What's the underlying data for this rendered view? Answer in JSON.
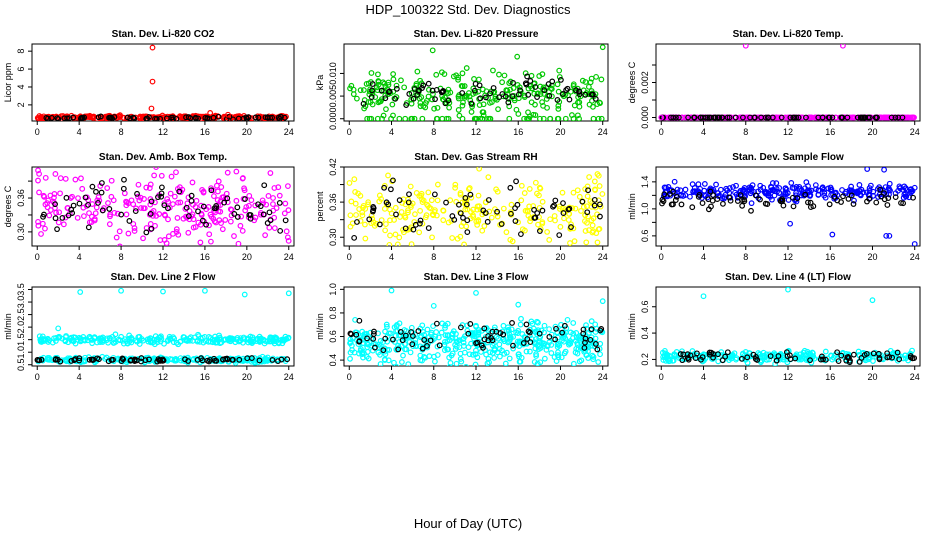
{
  "figure": {
    "title": "HDP_100322  Std. Dev. Diagnostics",
    "xlabel": "Hour of Day (UTC)"
  },
  "colors": {
    "red": "#ff0000",
    "green": "#00c800",
    "magenta": "#ff00ff",
    "yellow": "#ffff00",
    "blue": "#0000ff",
    "cyan": "#00ffff",
    "black": "#000000"
  },
  "chart_data": [
    {
      "type": "scatter",
      "id": "co2",
      "title": "Stan. Dev. Li-820 CO2",
      "ylabel": "Licor ppm",
      "color": "red",
      "xlim": [
        -0.5,
        24.5
      ],
      "ylim": [
        0.2,
        8.8
      ],
      "xticks": [
        0,
        4,
        8,
        12,
        16,
        20,
        24
      ],
      "yticks": [
        2,
        4,
        6,
        8
      ],
      "ytick_labels": [
        "2",
        "4",
        "6",
        "8"
      ],
      "band": {
        "center": 0.62,
        "spread": 0.08
      },
      "outliers": [
        [
          11.0,
          8.4
        ],
        [
          11.0,
          4.6
        ],
        [
          10.9,
          1.6
        ],
        [
          16.5,
          1.1
        ],
        [
          18.2,
          0.9
        ],
        [
          7.9,
          0.85
        ]
      ],
      "black": {
        "center": 0.55,
        "spread": 0.07
      }
    },
    {
      "type": "scatter",
      "id": "pressure",
      "title": "Stan. Dev. Li-820 Pressure",
      "ylabel": "kPa",
      "color": "green",
      "xlim": [
        -0.5,
        24.5
      ],
      "ylim": [
        -0.0005,
        0.0165
      ],
      "xticks": [
        0,
        4,
        8,
        12,
        16,
        20,
        24
      ],
      "yticks": [
        0,
        0.005,
        0.01
      ],
      "ytick_labels": [
        "0.000",
        "0.005",
        "0.010"
      ],
      "band": {
        "center": 0.0055,
        "spread": 0.0022
      },
      "outliers": [
        [
          24.0,
          0.0158
        ],
        [
          7.9,
          0.0151
        ],
        [
          15.9,
          0.0137
        ],
        [
          2.1,
          0.0101
        ]
      ],
      "zero_row": true,
      "black": {
        "center": 0.0055,
        "spread": 0.0015
      }
    },
    {
      "type": "scatter",
      "id": "temp",
      "title": "Stan. Dev. Li-820 Temp.",
      "ylabel": "degrees C",
      "color": "magenta",
      "xlim": [
        -0.5,
        24.5
      ],
      "ylim": [
        -0.0002,
        0.0042
      ],
      "xticks": [
        0,
        4,
        8,
        12,
        16,
        20,
        24
      ],
      "yticks": [
        0,
        0.001,
        0.002,
        0.003
      ],
      "ytick_labels": [
        "0.000",
        "",
        "0.002",
        ""
      ],
      "band": {
        "center": 0.0,
        "spread": 0.0
      },
      "outliers": [
        [
          8.0,
          0.0041
        ],
        [
          17.2,
          0.0041
        ],
        [
          0.0,
          0.0
        ]
      ],
      "black": {
        "center": 0.0,
        "spread": 0.0
      }
    },
    {
      "type": "scatter",
      "id": "boxtemp",
      "title": "Stan. Dev. Amb. Box Temp.",
      "ylabel": "degrees C",
      "color": "magenta",
      "xlim": [
        -0.5,
        24.5
      ],
      "ylim": [
        0.275,
        0.415
      ],
      "xticks": [
        0,
        4,
        8,
        12,
        16,
        20,
        24
      ],
      "yticks": [
        0.3,
        0.33,
        0.36,
        0.39
      ],
      "ytick_labels": [
        "0.30",
        "",
        "0.36",
        ""
      ],
      "band": {
        "center": 0.345,
        "spread": 0.028
      },
      "outliers": [
        [
          19.2,
          0.279
        ],
        [
          23.8,
          0.301
        ],
        [
          19.0,
          0.407
        ]
      ],
      "black": {
        "center": 0.345,
        "spread": 0.02
      }
    },
    {
      "type": "scatter",
      "id": "rh",
      "title": "Stan. Dev. Gas Stream RH",
      "ylabel": "percent",
      "color": "yellow",
      "xlim": [
        -0.5,
        24.5
      ],
      "ylim": [
        0.285,
        0.42
      ],
      "xticks": [
        0,
        4,
        8,
        12,
        16,
        20,
        24
      ],
      "yticks": [
        0.3,
        0.33,
        0.36,
        0.39,
        0.42
      ],
      "ytick_labels": [
        "0.30",
        "",
        "0.36",
        "",
        "0.42"
      ],
      "band": {
        "center": 0.345,
        "spread": 0.025
      },
      "outliers": [
        [
          12.3,
          0.417
        ],
        [
          20.9,
          0.29
        ],
        [
          23.5,
          0.408
        ]
      ],
      "black": {
        "center": 0.35,
        "spread": 0.02
      }
    },
    {
      "type": "scatter",
      "id": "sample",
      "title": "Stan. Dev. Sample Flow",
      "ylabel": "ml/min",
      "color": "blue",
      "xlim": [
        -0.5,
        24.5
      ],
      "ylim": [
        0.45,
        1.62
      ],
      "xticks": [
        0,
        4,
        8,
        12,
        16,
        20,
        24
      ],
      "yticks": [
        0.6,
        0.8,
        1.0,
        1.2,
        1.4
      ],
      "ytick_labels": [
        "0.6",
        "",
        "1.0",
        "",
        "1.4"
      ],
      "band": {
        "center": 1.25,
        "spread": 0.06
      },
      "outliers": [
        [
          19.5,
          1.59
        ],
        [
          21.1,
          1.58
        ],
        [
          24.0,
          0.48
        ],
        [
          21.3,
          0.6
        ],
        [
          21.6,
          0.6
        ],
        [
          16.2,
          0.62
        ],
        [
          12.2,
          0.78
        ]
      ],
      "black": {
        "center": 1.12,
        "spread": 0.06
      }
    },
    {
      "type": "scatter",
      "id": "line2",
      "title": "Stan. Dev. Line 2 Flow",
      "ylabel": "ml/min",
      "color": "cyan",
      "xlim": [
        -0.5,
        24.5
      ],
      "ylim": [
        0.45,
        3.6
      ],
      "xticks": [
        0,
        4,
        8,
        12,
        16,
        20,
        24
      ],
      "yticks": [
        0.5,
        1.0,
        1.5,
        2.0,
        2.5,
        3.0,
        3.5
      ],
      "ytick_labels": [
        "0.5",
        "1.0",
        "1.5",
        "2.0",
        "2.5",
        "3.0",
        "3.5"
      ],
      "band": {
        "center": 1.5,
        "spread": 0.08
      },
      "band2": {
        "center": 0.7,
        "spread": 0.05
      },
      "outliers": [
        [
          4.1,
          3.4
        ],
        [
          8.0,
          3.45
        ],
        [
          12.0,
          3.42
        ],
        [
          16.0,
          3.45
        ],
        [
          19.8,
          3.3
        ],
        [
          24.0,
          3.35
        ],
        [
          2.0,
          1.95
        ]
      ],
      "black": {
        "center": 0.7,
        "spread": 0.04
      }
    },
    {
      "type": "scatter",
      "id": "line3",
      "title": "Stan. Dev. Line 3 Flow",
      "ylabel": "ml/min",
      "color": "cyan",
      "xlim": [
        -0.5,
        24.5
      ],
      "ylim": [
        0.35,
        1.02
      ],
      "xticks": [
        0,
        4,
        8,
        12,
        16,
        20,
        24
      ],
      "yticks": [
        0.4,
        0.6,
        0.8,
        1.0
      ],
      "ytick_labels": [
        "0.4",
        "0.6",
        "0.8",
        "1.0"
      ],
      "band": {
        "center": 0.5,
        "spread": 0.07
      },
      "band2": {
        "center": 0.62,
        "spread": 0.06
      },
      "outliers": [
        [
          4.0,
          0.99
        ],
        [
          12.0,
          0.97
        ],
        [
          8.0,
          0.86
        ],
        [
          24.0,
          0.9
        ],
        [
          16.0,
          0.87
        ]
      ],
      "black": {
        "center": 0.6,
        "spread": 0.05
      }
    },
    {
      "type": "scatter",
      "id": "line4",
      "title": "Stan. Dev. Line 4 (LT) Flow",
      "ylabel": "ml/min",
      "color": "cyan",
      "xlim": [
        -0.5,
        24.5
      ],
      "ylim": [
        0.15,
        0.75
      ],
      "xticks": [
        0,
        4,
        8,
        12,
        16,
        20,
        24
      ],
      "yticks": [
        0.2,
        0.4,
        0.6
      ],
      "ytick_labels": [
        "0.2",
        "0.4",
        "0.6"
      ],
      "band": {
        "center": 0.22,
        "spread": 0.02
      },
      "outliers": [
        [
          4.0,
          0.68
        ],
        [
          12.0,
          0.73
        ],
        [
          20.0,
          0.65
        ]
      ],
      "black": {
        "center": 0.22,
        "spread": 0.02
      }
    }
  ]
}
